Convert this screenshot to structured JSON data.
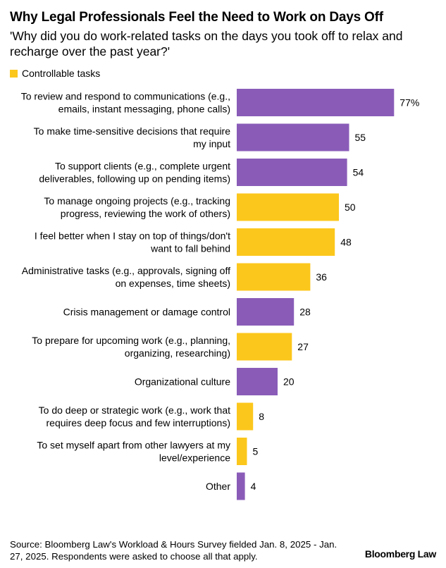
{
  "title": "Why Legal Professionals Feel the Need to Work on Days Off",
  "subtitle": "'Why did you do work-related tasks on the days you took off to relax and recharge over the past year?'",
  "legend": {
    "label": "Controllable tasks"
  },
  "colors": {
    "purple": "#8a5cb8",
    "yellow": "#fcc71c"
  },
  "chart_data": {
    "type": "bar",
    "orientation": "horizontal",
    "title": "Why Legal Professionals Feel the Need to Work on Days Off",
    "unit": "%",
    "xlim": [
      0,
      100
    ],
    "legend": [
      "Controllable tasks"
    ],
    "categories": [
      [
        "To review and respond to communications (e.g.,",
        "emails, instant messaging, phone calls)"
      ],
      [
        "To make time-sensitive decisions that require",
        "my input"
      ],
      [
        "To support clients (e.g., complete urgent",
        "deliverables, following up on pending items)"
      ],
      [
        "To manage ongoing projects (e.g., tracking",
        "progress, reviewing the work of others)"
      ],
      [
        "I feel better when I stay on top of things/don't",
        "want to fall behind"
      ],
      [
        "Administrative tasks (e.g., approvals, signing off",
        "on expenses, time sheets)"
      ],
      [
        "Crisis management or damage control"
      ],
      [
        "To prepare for upcoming work (e.g., planning,",
        "organizing, researching)"
      ],
      [
        "Organizational culture"
      ],
      [
        "To do deep or strategic work (e.g., work that",
        "requires deep focus and few interruptions)"
      ],
      [
        "To set myself apart from other lawyers at my",
        "level/experience"
      ],
      [
        "Other"
      ]
    ],
    "values": [
      77,
      55,
      54,
      50,
      48,
      36,
      28,
      27,
      20,
      8,
      5,
      4
    ],
    "value_labels": [
      "77%",
      "55",
      "54",
      "50",
      "48",
      "36",
      "28",
      "27",
      "20",
      "8",
      "5",
      "4"
    ],
    "controllable": [
      false,
      false,
      false,
      true,
      true,
      true,
      false,
      true,
      false,
      true,
      true,
      false
    ]
  },
  "footer": {
    "source": "Source: Bloomberg Law's Workload & Hours Survey fielded Jan. 8, 2025 - Jan. 27, 2025. Respondents were asked to choose all that apply.",
    "brand": "Bloomberg Law"
  }
}
